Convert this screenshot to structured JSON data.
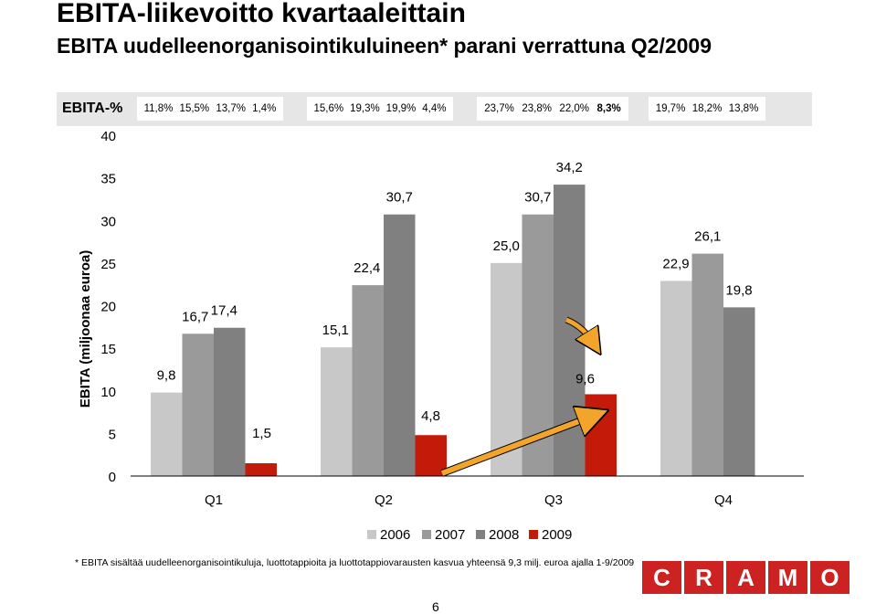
{
  "title": "EBITA-liikevoitto kvartaaleittain",
  "subtitle": "EBITA uudelleenorganisointikuluineen* parani verrattuna Q2/2009",
  "ebita_pct": {
    "label": "EBITA-%",
    "groups": [
      {
        "values": [
          "11,8%",
          "15,5%",
          "13,7%",
          "1,4%"
        ],
        "bold_index": -1
      },
      {
        "values": [
          "15,6%",
          "19,3%",
          "19,9%",
          "4,4%"
        ],
        "bold_index": -1
      },
      {
        "values": [
          "23,7%",
          "23,8%",
          "22,0%",
          "8,3%"
        ],
        "bold_index": 3
      },
      {
        "values": [
          "19,7%",
          "18,2%",
          "13,8%"
        ],
        "bold_index": -1
      }
    ]
  },
  "colors": {
    "s2006": "#c8c8c8",
    "s2007": "#9a9a9a",
    "s2008": "#808080",
    "s2009": "#c41a0a",
    "arrow": "#f2a52a",
    "logo": "#cc2222"
  },
  "chart_data": {
    "type": "bar",
    "ylabel": "EBITA (miljoonaa euroa)",
    "xlabel": "",
    "ylim": [
      0,
      40
    ],
    "yticks": [
      0,
      5,
      10,
      15,
      20,
      25,
      30,
      35,
      40
    ],
    "categories": [
      "Q1",
      "Q2",
      "Q3",
      "Q4"
    ],
    "grid": false,
    "legend_position": "bottom",
    "series": [
      {
        "name": "2006",
        "values": [
          9.8,
          15.1,
          25.0,
          22.9
        ],
        "labels": [
          "9,8",
          "15,1",
          "25,0",
          "22,9"
        ]
      },
      {
        "name": "2007",
        "values": [
          16.7,
          22.4,
          30.7,
          26.1
        ],
        "labels": [
          "16,7",
          "22,4",
          "30,7",
          "26,1"
        ]
      },
      {
        "name": "2008",
        "values": [
          17.4,
          30.7,
          34.2,
          19.8
        ],
        "labels": [
          "17,4",
          "30,7",
          "34,2",
          "19,8"
        ]
      },
      {
        "name": "2009",
        "values": [
          1.5,
          4.8,
          9.6,
          null
        ],
        "labels": [
          "1,5",
          "4,8",
          "9,6",
          ""
        ]
      }
    ]
  },
  "footnote": "* EBITA sisältää uudelleenorganisointikuluja, luottotappioita ja luottotappiovarausten kasvua yhteensä 9,3 milj. euroa ajalla 1-9/2009",
  "page_number": "6",
  "logo_letters": [
    "C",
    "R",
    "A",
    "M",
    "O"
  ]
}
